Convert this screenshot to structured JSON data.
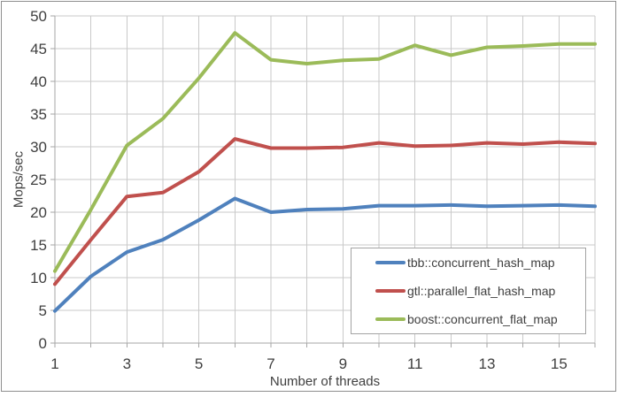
{
  "chart_data": {
    "type": "line",
    "title": "",
    "xlabel": "Number of threads",
    "ylabel": "Mops/sec",
    "x": [
      1,
      2,
      3,
      4,
      5,
      6,
      7,
      8,
      9,
      10,
      11,
      12,
      13,
      14,
      15,
      16
    ],
    "x_tick_labels": [
      1,
      3,
      5,
      7,
      9,
      11,
      13,
      15
    ],
    "y_tick_labels": [
      0,
      5,
      10,
      15,
      20,
      25,
      30,
      35,
      40,
      45,
      50
    ],
    "ylim": [
      0,
      50
    ],
    "xlim": [
      1,
      16
    ],
    "y_tick_step": 5,
    "grid": "vertical every 1 thread, horizontal every 5 Mops/sec",
    "legend_position": "inside-bottom-right",
    "series": [
      {
        "name": "tbb::concurrent_hash_map",
        "color": "#4F81BD",
        "values": [
          4.9,
          10.2,
          13.9,
          15.8,
          18.8,
          22.1,
          20.0,
          20.4,
          20.5,
          21.0,
          21.0,
          21.1,
          20.9,
          21.0,
          21.1,
          20.9
        ]
      },
      {
        "name": "gtl::parallel_flat_hash_map",
        "color": "#C0504D",
        "values": [
          9.0,
          15.8,
          22.4,
          23.0,
          26.2,
          31.2,
          29.8,
          29.8,
          29.9,
          30.6,
          30.1,
          30.2,
          30.6,
          30.4,
          30.7,
          30.5
        ]
      },
      {
        "name": "boost::concurrent_flat_map",
        "color": "#9BBB59",
        "values": [
          11.0,
          20.4,
          30.2,
          34.3,
          40.5,
          47.4,
          43.3,
          42.7,
          43.2,
          43.4,
          45.5,
          44.0,
          45.2,
          45.4,
          45.7,
          45.7
        ]
      }
    ]
  },
  "colors": {
    "background": "#ffffff",
    "gridline": "#c9c9c9",
    "axis": "#a6a6a6",
    "text": "#3f3f3f",
    "legend_border": "#a3a3a3",
    "chart_border": "#8e8e8e"
  }
}
